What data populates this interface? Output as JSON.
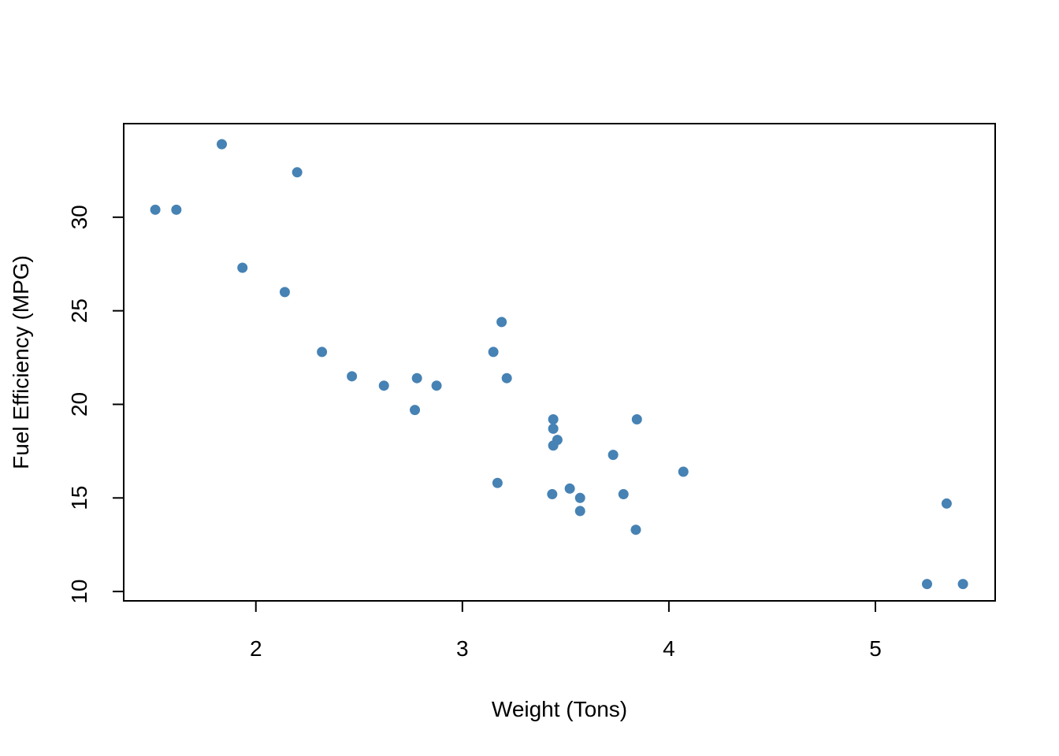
{
  "chart_data": {
    "type": "scatter",
    "title": "",
    "xlabel": "Weight (Tons)",
    "ylabel": "Fuel Efficiency (MPG)",
    "xlim": [
      1.36,
      5.58
    ],
    "ylim": [
      9.5,
      35.0
    ],
    "xticks": [
      2,
      3,
      4,
      5
    ],
    "yticks": [
      10,
      15,
      20,
      25,
      30
    ],
    "grid": false,
    "point_color": "#4682B4",
    "points": [
      {
        "x": 2.62,
        "y": 21.0
      },
      {
        "x": 2.875,
        "y": 21.0
      },
      {
        "x": 2.32,
        "y": 22.8
      },
      {
        "x": 3.215,
        "y": 21.4
      },
      {
        "x": 3.44,
        "y": 18.7
      },
      {
        "x": 3.46,
        "y": 18.1
      },
      {
        "x": 3.57,
        "y": 14.3
      },
      {
        "x": 3.19,
        "y": 24.4
      },
      {
        "x": 3.15,
        "y": 22.8
      },
      {
        "x": 3.44,
        "y": 19.2
      },
      {
        "x": 3.44,
        "y": 17.8
      },
      {
        "x": 4.07,
        "y": 16.4
      },
      {
        "x": 3.73,
        "y": 17.3
      },
      {
        "x": 3.78,
        "y": 15.2
      },
      {
        "x": 5.25,
        "y": 10.4
      },
      {
        "x": 5.424,
        "y": 10.4
      },
      {
        "x": 5.345,
        "y": 14.7
      },
      {
        "x": 2.2,
        "y": 32.4
      },
      {
        "x": 1.615,
        "y": 30.4
      },
      {
        "x": 1.835,
        "y": 33.9
      },
      {
        "x": 2.465,
        "y": 21.5
      },
      {
        "x": 3.52,
        "y": 15.5
      },
      {
        "x": 3.435,
        "y": 15.2
      },
      {
        "x": 3.84,
        "y": 13.3
      },
      {
        "x": 3.845,
        "y": 19.2
      },
      {
        "x": 1.935,
        "y": 27.3
      },
      {
        "x": 2.14,
        "y": 26.0
      },
      {
        "x": 1.513,
        "y": 30.4
      },
      {
        "x": 3.17,
        "y": 15.8
      },
      {
        "x": 2.77,
        "y": 19.7
      },
      {
        "x": 3.57,
        "y": 15.0
      },
      {
        "x": 2.78,
        "y": 21.4
      }
    ]
  }
}
